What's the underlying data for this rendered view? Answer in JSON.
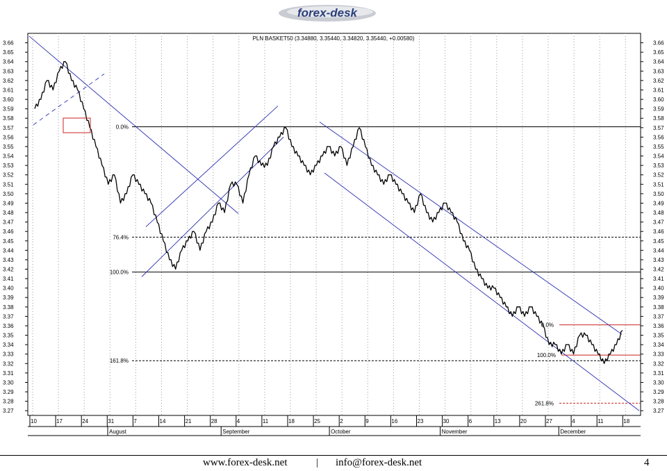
{
  "header": {
    "logo_text": "forex-desk"
  },
  "chart_data": {
    "type": "line",
    "title": "PLN BASKET50 (3.34880, 3.35440, 3.34820, 3.35440, +0.00580)",
    "ylim": [
      3.265,
      3.67
    ],
    "y_ticks": [
      "3.66",
      "3.65",
      "3.64",
      "3.63",
      "3.62",
      "3.61",
      "3.60",
      "3.59",
      "3.58",
      "3.57",
      "3.56",
      "3.55",
      "3.54",
      "3.53",
      "3.52",
      "3.51",
      "3.50",
      "3.49",
      "3.48",
      "3.47",
      "3.46",
      "3.45",
      "3.44",
      "3.43",
      "3.42",
      "3.41",
      "3.40",
      "3.39",
      "3.38",
      "3.37",
      "3.36",
      "3.35",
      "3.34",
      "3.33",
      "3.32",
      "3.31",
      "3.30",
      "3.29",
      "3.28",
      "3.27"
    ],
    "x_ticks": [
      "10",
      "17",
      "24",
      "31",
      "7",
      "14",
      "21",
      "28",
      "4",
      "11",
      "18",
      "25",
      "2",
      "9",
      "16",
      "23",
      "30",
      "6",
      "13",
      "20",
      "27",
      "4",
      "11",
      "18"
    ],
    "months": [
      "August",
      "September",
      "October",
      "November",
      "December"
    ],
    "series": [
      {
        "values": [
          3.59,
          3.6,
          3.62,
          3.61,
          3.63,
          3.64,
          3.62,
          3.61,
          3.59,
          3.57,
          3.55,
          3.53,
          3.51,
          3.52,
          3.49,
          3.5,
          3.52,
          3.51,
          3.5,
          3.49,
          3.47,
          3.45,
          3.43,
          3.42,
          3.44,
          3.45,
          3.46,
          3.44,
          3.46,
          3.47,
          3.49,
          3.48,
          3.51,
          3.51,
          3.49,
          3.52,
          3.54,
          3.53,
          3.53,
          3.55,
          3.56,
          3.57,
          3.55,
          3.54,
          3.53,
          3.52,
          3.53,
          3.54,
          3.55,
          3.54,
          3.55,
          3.53,
          3.55,
          3.57,
          3.55,
          3.53,
          3.52,
          3.51,
          3.52,
          3.51,
          3.5,
          3.49,
          3.48,
          3.5,
          3.48,
          3.47,
          3.48,
          3.49,
          3.48,
          3.47,
          3.45,
          3.44,
          3.42,
          3.41,
          3.4,
          3.4,
          3.39,
          3.38,
          3.37,
          3.38,
          3.37,
          3.38,
          3.37,
          3.36,
          3.34,
          3.34,
          3.33,
          3.34,
          3.33,
          3.35,
          3.35,
          3.34,
          3.33,
          3.32,
          3.33,
          3.34,
          3.355
        ]
      }
    ],
    "fib_levels": [
      {
        "label": "0.0%",
        "value": 3.571
      },
      {
        "label": "76.4%",
        "value": 3.454
      },
      {
        "label": "100.0%",
        "value": 3.417
      },
      {
        "label": "161.8%",
        "value": 3.323
      }
    ],
    "fib_levels_red": [
      {
        "label": "0.0%",
        "value": 3.361
      },
      {
        "label": "100.0%",
        "value": 3.329
      },
      {
        "label": "261.8%",
        "value": 3.278
      }
    ]
  },
  "footer": {
    "website": "www.forex-desk.net",
    "separator": "|",
    "email": "info@forex-desk.net",
    "page_number": "4"
  }
}
